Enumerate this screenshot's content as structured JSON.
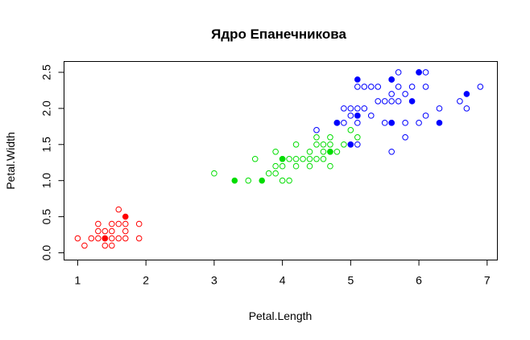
{
  "chart_data": {
    "type": "scatter",
    "title": "Ядро Епанечникова",
    "xlabel": "Petal.Length",
    "ylabel": "Petal.Width",
    "xlim": [
      0.8,
      7.15
    ],
    "ylim": [
      -0.1,
      2.65
    ],
    "x_ticks": [
      "1",
      "2",
      "3",
      "4",
      "5",
      "6",
      "7"
    ],
    "y_ticks": [
      "0.0",
      "0.5",
      "1.0",
      "1.5",
      "2.0",
      "2.5"
    ],
    "grid": false,
    "legend": "none",
    "series": [
      {
        "color": "#ff0000",
        "points": [
          [
            1.0,
            0.2
          ],
          [
            1.1,
            0.1
          ],
          [
            1.2,
            0.2
          ],
          [
            1.3,
            0.2
          ],
          [
            1.3,
            0.3
          ],
          [
            1.3,
            0.4
          ],
          [
            1.4,
            0.1
          ],
          [
            1.4,
            0.2
          ],
          [
            1.4,
            0.3
          ],
          [
            1.5,
            0.1
          ],
          [
            1.5,
            0.2
          ],
          [
            1.5,
            0.3
          ],
          [
            1.5,
            0.4
          ],
          [
            1.6,
            0.2
          ],
          [
            1.6,
            0.4
          ],
          [
            1.6,
            0.6
          ],
          [
            1.7,
            0.2
          ],
          [
            1.7,
            0.3
          ],
          [
            1.7,
            0.4
          ],
          [
            1.9,
            0.2
          ],
          [
            1.9,
            0.4
          ]
        ],
        "filled": [
          [
            1.4,
            0.2
          ],
          [
            1.7,
            0.5
          ]
        ]
      },
      {
        "color": "#00dd00",
        "points": [
          [
            3.0,
            1.1
          ],
          [
            3.5,
            1.0
          ],
          [
            3.6,
            1.3
          ],
          [
            3.8,
            1.1
          ],
          [
            3.9,
            1.1
          ],
          [
            3.9,
            1.2
          ],
          [
            3.9,
            1.4
          ],
          [
            4.0,
            1.0
          ],
          [
            4.0,
            1.2
          ],
          [
            4.0,
            1.3
          ],
          [
            4.1,
            1.0
          ],
          [
            4.1,
            1.3
          ],
          [
            4.2,
            1.2
          ],
          [
            4.2,
            1.3
          ],
          [
            4.2,
            1.5
          ],
          [
            4.3,
            1.3
          ],
          [
            4.4,
            1.2
          ],
          [
            4.4,
            1.3
          ],
          [
            4.4,
            1.4
          ],
          [
            4.5,
            1.3
          ],
          [
            4.5,
            1.5
          ],
          [
            4.5,
            1.6
          ],
          [
            4.6,
            1.3
          ],
          [
            4.6,
            1.4
          ],
          [
            4.6,
            1.5
          ],
          [
            4.7,
            1.2
          ],
          [
            4.7,
            1.4
          ],
          [
            4.7,
            1.5
          ],
          [
            4.7,
            1.6
          ],
          [
            4.8,
            1.4
          ],
          [
            4.8,
            1.8
          ],
          [
            4.9,
            1.5
          ],
          [
            5.0,
            1.7
          ],
          [
            5.1,
            1.6
          ]
        ],
        "filled": [
          [
            3.3,
            1.0
          ],
          [
            3.7,
            1.0
          ],
          [
            4.0,
            1.3
          ],
          [
            4.7,
            1.4
          ]
        ]
      },
      {
        "color": "#0000ff",
        "points": [
          [
            4.5,
            1.7
          ],
          [
            4.8,
            1.8
          ],
          [
            4.9,
            1.8
          ],
          [
            4.9,
            2.0
          ],
          [
            5.0,
            1.5
          ],
          [
            5.0,
            1.9
          ],
          [
            5.0,
            2.0
          ],
          [
            5.1,
            1.5
          ],
          [
            5.1,
            1.8
          ],
          [
            5.1,
            1.9
          ],
          [
            5.1,
            2.0
          ],
          [
            5.1,
            2.3
          ],
          [
            5.2,
            2.0
          ],
          [
            5.2,
            2.3
          ],
          [
            5.3,
            1.9
          ],
          [
            5.3,
            2.3
          ],
          [
            5.4,
            2.1
          ],
          [
            5.4,
            2.3
          ],
          [
            5.5,
            1.8
          ],
          [
            5.5,
            2.1
          ],
          [
            5.6,
            1.4
          ],
          [
            5.6,
            1.8
          ],
          [
            5.6,
            2.1
          ],
          [
            5.6,
            2.2
          ],
          [
            5.6,
            2.4
          ],
          [
            5.7,
            2.1
          ],
          [
            5.7,
            2.3
          ],
          [
            5.7,
            2.5
          ],
          [
            5.8,
            1.6
          ],
          [
            5.8,
            1.8
          ],
          [
            5.8,
            2.2
          ],
          [
            5.9,
            2.3
          ],
          [
            6.0,
            1.8
          ],
          [
            6.0,
            2.5
          ],
          [
            6.1,
            1.9
          ],
          [
            6.1,
            2.3
          ],
          [
            6.1,
            2.5
          ],
          [
            6.3,
            2.0
          ],
          [
            6.6,
            2.1
          ],
          [
            6.7,
            2.0
          ],
          [
            6.9,
            2.3
          ]
        ],
        "filled": [
          [
            4.8,
            1.8
          ],
          [
            5.0,
            1.5
          ],
          [
            5.1,
            1.9
          ],
          [
            5.1,
            2.4
          ],
          [
            5.6,
            1.8
          ],
          [
            5.6,
            2.4
          ],
          [
            5.9,
            2.1
          ],
          [
            6.0,
            2.5
          ],
          [
            6.3,
            1.8
          ],
          [
            6.7,
            2.2
          ]
        ]
      }
    ]
  }
}
